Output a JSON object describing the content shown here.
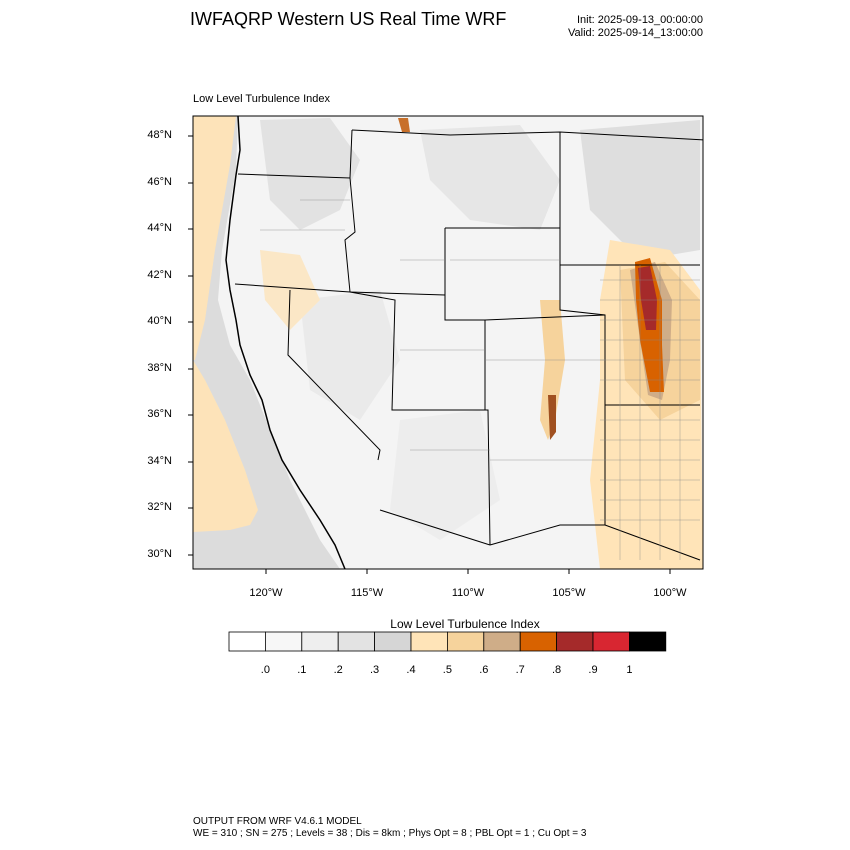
{
  "header": {
    "title": "IWFAQRP Western US Real Time WRF",
    "init": "Init: 2025-09-13_00:00:00",
    "valid": "Valid: 2025-09-14_13:00:00"
  },
  "plot": {
    "title": "Low Level Turbulence Index",
    "lat_labels": [
      "48°N",
      "46°N",
      "44°N",
      "42°N",
      "40°N",
      "38°N",
      "36°N",
      "34°N",
      "32°N",
      "30°N"
    ],
    "lon_labels": [
      "120°W",
      "115°W",
      "110°W",
      "105°W",
      "100°W"
    ]
  },
  "colorbar": {
    "title": "Low Level Turbulence Index",
    "labels": [
      ".0",
      ".1",
      ".2",
      ".3",
      ".4",
      ".5",
      ".6",
      ".7",
      ".8",
      ".9",
      "1"
    ],
    "colors": [
      "#ffffff",
      "#f7f7f7",
      "#eeeeee",
      "#e3e3e3",
      "#d6d6d6",
      "#ffe4b8",
      "#f6d39c",
      "#cfad88",
      "#d86200",
      "#a52a2a",
      "#d82631",
      "#000000"
    ]
  },
  "footer": {
    "line1": "OUTPUT FROM WRF V4.6.1 MODEL",
    "line2": "WE = 310 ; SN = 275 ; Levels = 38 ; Dis = 8km ; Phys Opt = 8 ; PBL Opt = 1 ; Cu Opt = 3"
  }
}
